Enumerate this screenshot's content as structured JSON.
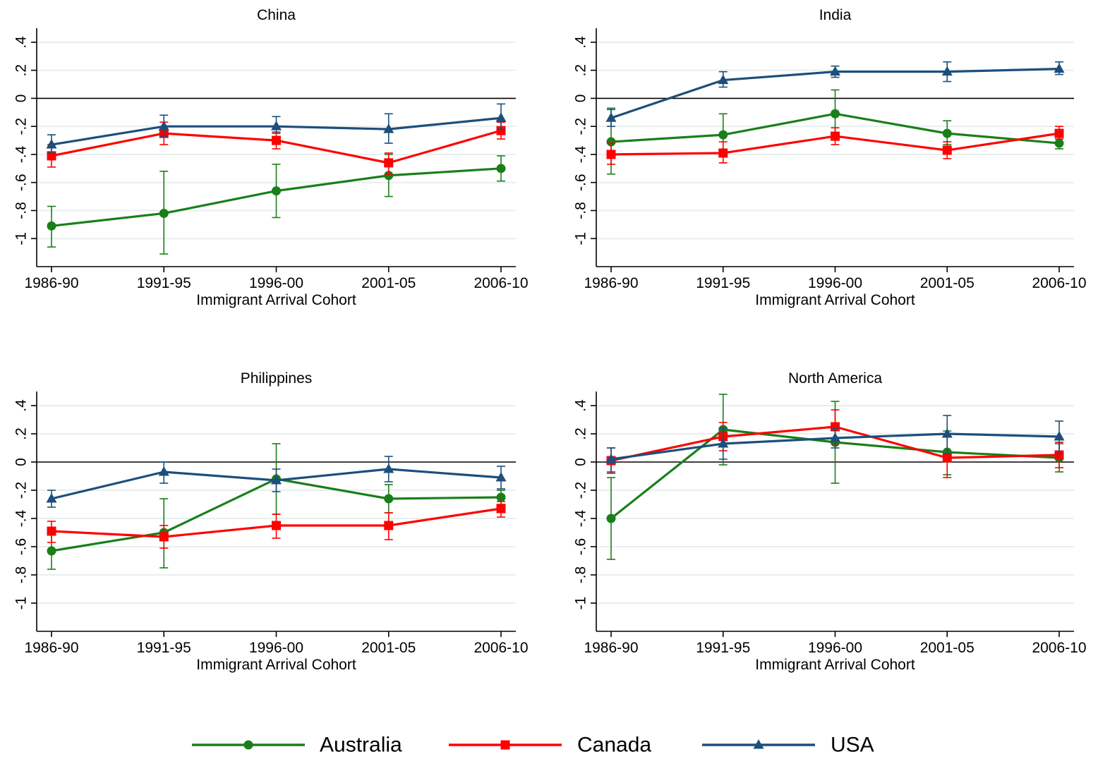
{
  "chart_data": [
    {
      "type": "line",
      "title": "China",
      "xlabel": "Immigrant Arrival Cohort",
      "ylabel": "",
      "categories": [
        "1986-90",
        "1991-95",
        "1996-00",
        "2001-05",
        "2006-10"
      ],
      "yticks": [
        ".4",
        ".2",
        "0",
        "-.2",
        "-.4",
        "-.6",
        "-.8",
        "-1"
      ],
      "ylim": [
        -1.2,
        0.5
      ],
      "series": [
        {
          "name": "Australia",
          "values": [
            -0.91,
            -0.82,
            -0.66,
            -0.55,
            -0.5
          ],
          "lower": [
            -1.06,
            -1.11,
            -0.85,
            -0.7,
            -0.59
          ],
          "upper": [
            -0.77,
            -0.52,
            -0.47,
            -0.4,
            -0.41
          ]
        },
        {
          "name": "Canada",
          "values": [
            -0.41,
            -0.25,
            -0.3,
            -0.46,
            -0.23
          ],
          "lower": [
            -0.49,
            -0.33,
            -0.36,
            -0.54,
            -0.29
          ],
          "upper": [
            -0.33,
            -0.17,
            -0.24,
            -0.39,
            -0.17
          ]
        },
        {
          "name": "USA",
          "values": [
            -0.33,
            -0.2,
            -0.2,
            -0.22,
            -0.14
          ],
          "lower": [
            -0.39,
            -0.27,
            -0.25,
            -0.32,
            -0.22
          ],
          "upper": [
            -0.26,
            -0.12,
            -0.13,
            -0.11,
            -0.04
          ]
        }
      ]
    },
    {
      "type": "line",
      "title": "India",
      "xlabel": "Immigrant Arrival Cohort",
      "ylabel": "",
      "categories": [
        "1986-90",
        "1991-95",
        "1996-00",
        "2001-05",
        "2006-10"
      ],
      "yticks": [
        ".4",
        ".2",
        "0",
        "-.2",
        "-.4",
        "-.6",
        "-.8",
        "-1"
      ],
      "ylim": [
        -1.2,
        0.5
      ],
      "series": [
        {
          "name": "Australia",
          "values": [
            -0.31,
            -0.26,
            -0.11,
            -0.25,
            -0.32
          ],
          "lower": [
            -0.54,
            -0.4,
            -0.27,
            -0.33,
            -0.36
          ],
          "upper": [
            -0.07,
            -0.11,
            0.06,
            -0.16,
            -0.27
          ]
        },
        {
          "name": "Canada",
          "values": [
            -0.4,
            -0.39,
            -0.27,
            -0.37,
            -0.25
          ],
          "lower": [
            -0.47,
            -0.46,
            -0.33,
            -0.43,
            -0.29
          ],
          "upper": [
            -0.32,
            -0.31,
            -0.21,
            -0.31,
            -0.2
          ]
        },
        {
          "name": "USA",
          "values": [
            -0.14,
            0.13,
            0.19,
            0.19,
            0.21
          ],
          "lower": [
            -0.2,
            0.08,
            0.15,
            0.12,
            0.17
          ],
          "upper": [
            -0.08,
            0.19,
            0.23,
            0.26,
            0.26
          ]
        }
      ]
    },
    {
      "type": "line",
      "title": "Philippines",
      "xlabel": "Immigrant Arrival Cohort",
      "ylabel": "",
      "categories": [
        "1986-90",
        "1991-95",
        "1996-00",
        "2001-05",
        "2006-10"
      ],
      "yticks": [
        ".4",
        ".2",
        "0",
        "-.2",
        "-.4",
        "-.6",
        "-.8",
        "-1"
      ],
      "ylim": [
        -1.2,
        0.5
      ],
      "series": [
        {
          "name": "Australia",
          "values": [
            -0.63,
            -0.5,
            -0.12,
            -0.26,
            -0.25
          ],
          "lower": [
            -0.76,
            -0.75,
            -0.37,
            -0.36,
            -0.3
          ],
          "upper": [
            -0.5,
            -0.26,
            0.13,
            -0.16,
            -0.2
          ]
        },
        {
          "name": "Canada",
          "values": [
            -0.49,
            -0.53,
            -0.45,
            -0.45,
            -0.33
          ],
          "lower": [
            -0.57,
            -0.61,
            -0.54,
            -0.55,
            -0.39
          ],
          "upper": [
            -0.42,
            -0.45,
            -0.37,
            -0.36,
            -0.28
          ]
        },
        {
          "name": "USA",
          "values": [
            -0.26,
            -0.07,
            -0.13,
            -0.05,
            -0.11
          ],
          "lower": [
            -0.32,
            -0.15,
            -0.21,
            -0.14,
            -0.19
          ],
          "upper": [
            -0.2,
            0.0,
            -0.05,
            0.04,
            -0.03
          ]
        }
      ]
    },
    {
      "type": "line",
      "title": "North America",
      "xlabel": "Immigrant Arrival Cohort",
      "ylabel": "",
      "categories": [
        "1986-90",
        "1991-95",
        "1996-00",
        "2001-05",
        "2006-10"
      ],
      "yticks": [
        ".4",
        ".2",
        "0",
        "-.2",
        "-.4",
        "-.6",
        "-.8",
        "-1"
      ],
      "ylim": [
        -1.2,
        0.5
      ],
      "series": [
        {
          "name": "Australia",
          "values": [
            -0.4,
            0.23,
            0.14,
            0.07,
            0.03
          ],
          "lower": [
            -0.69,
            -0.02,
            -0.15,
            -0.09,
            -0.07
          ],
          "upper": [
            -0.11,
            0.48,
            0.43,
            0.22,
            0.13
          ]
        },
        {
          "name": "Canada",
          "values": [
            0.01,
            0.18,
            0.25,
            0.03,
            0.05
          ],
          "lower": [
            -0.08,
            0.08,
            0.13,
            -0.11,
            -0.04
          ],
          "upper": [
            0.1,
            0.28,
            0.37,
            0.18,
            0.14
          ]
        },
        {
          "name": "USA",
          "values": [
            0.02,
            0.13,
            0.17,
            0.2,
            0.18
          ],
          "lower": [
            -0.07,
            0.02,
            0.1,
            0.06,
            0.06
          ],
          "upper": [
            0.1,
            0.24,
            0.24,
            0.33,
            0.29
          ]
        }
      ]
    }
  ],
  "legend": {
    "position": "bottom",
    "items": [
      {
        "label": "Australia",
        "color": "#1a7f1a",
        "marker": "circle"
      },
      {
        "label": "Canada",
        "color": "#ff0000",
        "marker": "square"
      },
      {
        "label": "USA",
        "color": "#1c4f7c",
        "marker": "triangle"
      }
    ]
  },
  "style": {
    "grid": true,
    "gridColor": "#e8efef",
    "zeroLine": true
  }
}
